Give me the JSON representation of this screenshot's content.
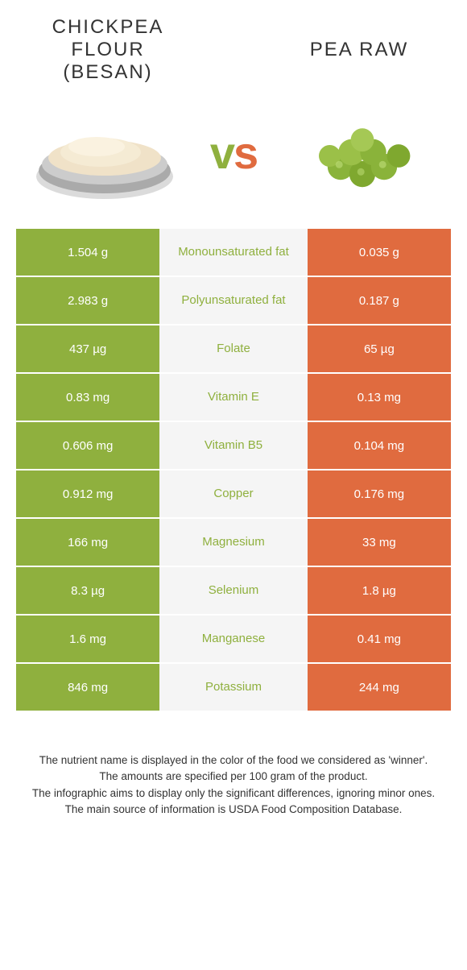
{
  "left_food": "Chickpea flour (besan)",
  "right_food": "Pea raw",
  "vs": "vs",
  "colors": {
    "left": "#8fb03e",
    "right": "#e06b3f",
    "mid_bg": "#f5f5f5",
    "mid_text_winner_left": "#8fb03e"
  },
  "rows": [
    {
      "left": "1.504 g",
      "nutrient": "Monounsaturated fat",
      "right": "0.035 g"
    },
    {
      "left": "2.983 g",
      "nutrient": "Polyunsaturated fat",
      "right": "0.187 g"
    },
    {
      "left": "437 µg",
      "nutrient": "Folate",
      "right": "65 µg"
    },
    {
      "left": "0.83 mg",
      "nutrient": "Vitamin E",
      "right": "0.13 mg"
    },
    {
      "left": "0.606 mg",
      "nutrient": "Vitamin B5",
      "right": "0.104 mg"
    },
    {
      "left": "0.912 mg",
      "nutrient": "Copper",
      "right": "0.176 mg"
    },
    {
      "left": "166 mg",
      "nutrient": "Magnesium",
      "right": "33 mg"
    },
    {
      "left": "8.3 µg",
      "nutrient": "Selenium",
      "right": "1.8 µg"
    },
    {
      "left": "1.6 mg",
      "nutrient": "Manganese",
      "right": "0.41 mg"
    },
    {
      "left": "846 mg",
      "nutrient": "Potassium",
      "right": "244 mg"
    }
  ],
  "footer": [
    "The nutrient name is displayed in the color of the food we considered as 'winner'.",
    "The amounts are specified per 100 gram of the product.",
    "The infographic aims to display only the significant differences, ignoring minor ones.",
    "The main source of information is USDA Food Composition Database."
  ]
}
